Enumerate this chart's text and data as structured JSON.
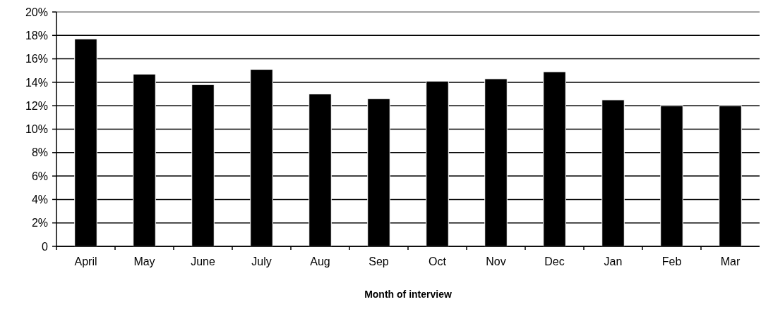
{
  "chart_data": {
    "type": "bar",
    "xlabel": "Month of interview",
    "categories": [
      "April",
      "May",
      "June",
      "July",
      "Aug",
      "Sep",
      "Oct",
      "Nov",
      "Dec",
      "Jan",
      "Feb",
      "Mar"
    ],
    "values": [
      17.7,
      14.7,
      13.8,
      15.1,
      13.0,
      12.6,
      14.1,
      14.3,
      14.9,
      12.5,
      12.0,
      12.0
    ],
    "color": "#000000",
    "ylim": [
      0,
      20
    ],
    "yticks": [
      0,
      {
        "value": 2,
        "label": "2%"
      },
      {
        "value": 4,
        "label": "4%"
      },
      {
        "value": 6,
        "label": "6%"
      },
      {
        "value": 8,
        "label": "8%"
      },
      {
        "value": 10,
        "label": "10%"
      },
      {
        "value": 12,
        "label": "12%"
      },
      {
        "value": 14,
        "label": "14%"
      },
      {
        "value": 16,
        "label": "16%"
      },
      {
        "value": 18,
        "label": "18%"
      },
      {
        "value": 20,
        "label": "20%"
      }
    ],
    "grid": "y"
  }
}
